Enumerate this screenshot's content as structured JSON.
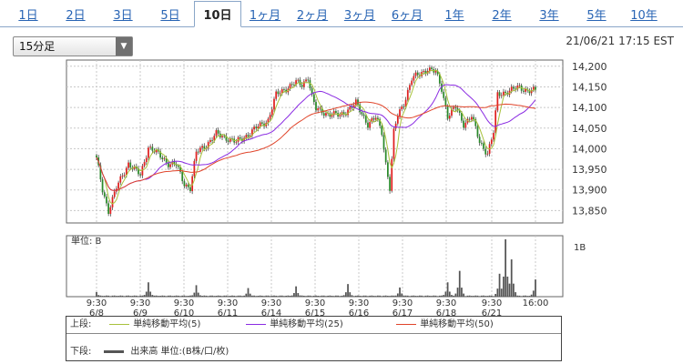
{
  "tabs": [
    "1日",
    "2日",
    "3日",
    "5日",
    "10日",
    "1ヶ月",
    "2ヶ月",
    "3ヶ月",
    "6ヶ月",
    "1年",
    "2年",
    "3年",
    "5年",
    "10年"
  ],
  "active_tab": "10日",
  "interval_select": {
    "value": "15分足",
    "arrow": "▼"
  },
  "timestamp": "21/06/21 17:15 EST",
  "volume_unit_label": "単位: B",
  "chart_data": [
    {
      "type": "candlestick",
      "x_tick_labels": [
        {
          "time": "9:30",
          "date": "6/8"
        },
        {
          "time": "9:30",
          "date": "6/9"
        },
        {
          "time": "9:30",
          "date": "6/10"
        },
        {
          "time": "9:30",
          "date": "6/11"
        },
        {
          "time": "9:30",
          "date": "6/14"
        },
        {
          "time": "9:30",
          "date": "6/15"
        },
        {
          "time": "9:30",
          "date": "6/16"
        },
        {
          "time": "9:30",
          "date": "6/17"
        },
        {
          "time": "9:30",
          "date": "6/18"
        },
        {
          "time": "9:30",
          "date": "6/21"
        },
        {
          "time": "16:00",
          "date": ""
        }
      ],
      "y_ticks": [
        "14,200",
        "14,150",
        "14,100",
        "14,050",
        "14,000",
        "13,950",
        "13,900",
        "13,850"
      ],
      "y_tick_values": [
        14200,
        14150,
        14100,
        14050,
        14000,
        13950,
        13900,
        13850
      ],
      "ylim": [
        13820,
        14215
      ],
      "close_anchors": [
        [
          0,
          13975
        ],
        [
          3,
          13900
        ],
        [
          6,
          13850
        ],
        [
          10,
          13905
        ],
        [
          16,
          13965
        ],
        [
          22,
          13935
        ],
        [
          26,
          14005
        ],
        [
          30,
          13990
        ],
        [
          36,
          13965
        ],
        [
          40,
          13960
        ],
        [
          44,
          13915
        ],
        [
          47,
          13905
        ],
        [
          50,
          13990
        ],
        [
          55,
          14010
        ],
        [
          60,
          14035
        ],
        [
          66,
          14025
        ],
        [
          70,
          14015
        ],
        [
          76,
          14035
        ],
        [
          80,
          14050
        ],
        [
          86,
          14070
        ],
        [
          90,
          14130
        ],
        [
          96,
          14150
        ],
        [
          100,
          14160
        ],
        [
          103,
          14155
        ],
        [
          106,
          14175
        ],
        [
          108,
          14125
        ],
        [
          110,
          14095
        ],
        [
          116,
          14085
        ],
        [
          122,
          14080
        ],
        [
          126,
          14095
        ],
        [
          130,
          14110
        ],
        [
          136,
          14060
        ],
        [
          140,
          14075
        ],
        [
          143,
          14040
        ],
        [
          145,
          13965
        ],
        [
          147,
          13905
        ],
        [
          149,
          14040
        ],
        [
          151,
          14080
        ],
        [
          154,
          14110
        ],
        [
          158,
          14170
        ],
        [
          162,
          14180
        ],
        [
          166,
          14195
        ],
        [
          170,
          14185
        ],
        [
          173,
          14145
        ],
        [
          176,
          14080
        ],
        [
          180,
          14100
        ],
        [
          184,
          14060
        ],
        [
          188,
          14080
        ],
        [
          192,
          14015
        ],
        [
          196,
          13990
        ],
        [
          199,
          14040
        ],
        [
          201,
          14130
        ],
        [
          206,
          14140
        ],
        [
          212,
          14148
        ],
        [
          216,
          14142
        ],
        [
          220,
          14140
        ]
      ],
      "moving_averages": [
        {
          "name": "単純移動平均(5)",
          "period": 5,
          "color": "#a8c23c"
        },
        {
          "name": "単純移動平均(25)",
          "period": 25,
          "color": "#8a2be2"
        },
        {
          "name": "単純移動平均(50)",
          "period": 50,
          "color": "#e0442a"
        }
      ],
      "candle_colors": {
        "up": "#e02020",
        "down": "#2b8a2b"
      }
    },
    {
      "type": "bar",
      "unit": "B",
      "y_ticks": [
        "1B"
      ],
      "volume_spikes": [
        [
          0,
          0.08
        ],
        [
          26,
          0.25
        ],
        [
          50,
          0.2
        ],
        [
          76,
          0.15
        ],
        [
          100,
          0.18
        ],
        [
          126,
          0.22
        ],
        [
          152,
          0.16
        ],
        [
          176,
          0.25
        ],
        [
          182,
          0.45
        ],
        [
          202,
          0.4
        ],
        [
          205,
          1.0
        ],
        [
          208,
          0.65
        ],
        [
          220,
          0.3
        ]
      ],
      "baseline_volume": 0.02,
      "color": "#555555"
    }
  ],
  "legend": {
    "upper_label": "上段:",
    "lower_label": "下段:",
    "items": [
      {
        "label": "単純移動平均(5)",
        "color": "#a8c23c"
      },
      {
        "label": "単純移動平均(25)",
        "color": "#8a2be2"
      },
      {
        "label": "単純移動平均(50)",
        "color": "#e0442a"
      }
    ],
    "volume_item": {
      "label": "出来高 単位:(B株/口/枚)",
      "color": "#555555"
    }
  }
}
